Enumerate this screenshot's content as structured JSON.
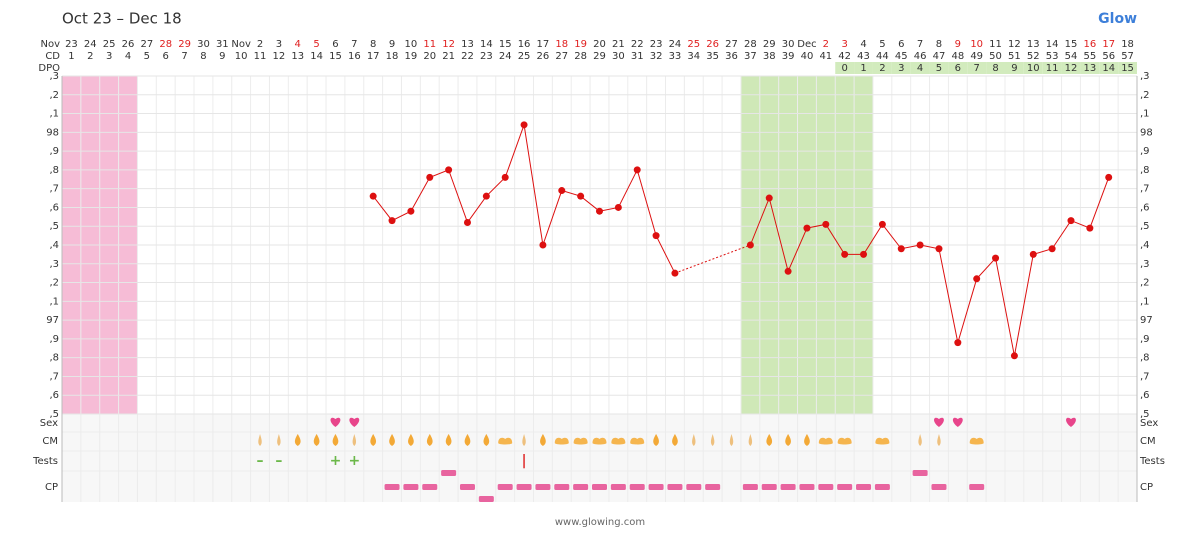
{
  "chart_data": {
    "type": "line",
    "title": "Oct 23 – Dec 18",
    "logo": "Glow",
    "footer": "www.glowing.com",
    "row_headers": {
      "date": "Nov",
      "cd": "CD",
      "dpo": "DPO"
    },
    "categories": [
      "23",
      "24",
      "25",
      "26",
      "27",
      "28",
      "29",
      "30",
      "31",
      "Nov",
      "2",
      "3",
      "4",
      "5",
      "6",
      "7",
      "8",
      "9",
      "10",
      "11",
      "12",
      "13",
      "14",
      "15",
      "16",
      "17",
      "18",
      "19",
      "20",
      "21",
      "22",
      "23",
      "24",
      "25",
      "26",
      "27",
      "28",
      "29",
      "30",
      "Dec",
      "2",
      "3",
      "4",
      "5",
      "6",
      "7",
      "8",
      "9",
      "10",
      "11",
      "12",
      "13",
      "14",
      "15",
      "16",
      "17",
      "18"
    ],
    "weekend": [
      false,
      false,
      false,
      false,
      false,
      true,
      true,
      false,
      false,
      false,
      false,
      false,
      true,
      true,
      false,
      false,
      false,
      false,
      false,
      true,
      true,
      false,
      false,
      false,
      false,
      false,
      true,
      true,
      false,
      false,
      false,
      false,
      false,
      true,
      true,
      false,
      false,
      false,
      false,
      false,
      true,
      true,
      false,
      false,
      false,
      false,
      false,
      true,
      true,
      false,
      false,
      false,
      false,
      false,
      true,
      true,
      false
    ],
    "weekend_color": "#e02020",
    "cycle_days": [
      1,
      2,
      3,
      4,
      5,
      6,
      7,
      8,
      9,
      10,
      11,
      12,
      13,
      14,
      15,
      16,
      17,
      18,
      19,
      20,
      21,
      22,
      23,
      24,
      25,
      26,
      27,
      28,
      29,
      30,
      31,
      32,
      33,
      34,
      35,
      36,
      37,
      38,
      39,
      40,
      41,
      42,
      43,
      44,
      45,
      46,
      47,
      48,
      49,
      50,
      51,
      52,
      53,
      54,
      55,
      56,
      57
    ],
    "dpo": [
      null,
      null,
      null,
      null,
      null,
      null,
      null,
      null,
      null,
      null,
      null,
      null,
      null,
      null,
      null,
      null,
      null,
      null,
      null,
      null,
      null,
      null,
      null,
      null,
      null,
      null,
      null,
      null,
      null,
      null,
      null,
      null,
      null,
      null,
      null,
      null,
      null,
      null,
      null,
      null,
      null,
      0,
      1,
      2,
      3,
      4,
      5,
      6,
      7,
      8,
      9,
      10,
      11,
      12,
      13,
      14,
      15
    ],
    "dpo_color": "#d2ebbd",
    "values": [
      null,
      null,
      null,
      null,
      null,
      null,
      null,
      null,
      null,
      null,
      null,
      null,
      null,
      null,
      null,
      null,
      97.66,
      97.53,
      97.58,
      97.76,
      97.8,
      97.52,
      97.66,
      97.76,
      98.04,
      97.4,
      97.69,
      97.66,
      97.58,
      97.6,
      97.8,
      97.45,
      97.25,
      null,
      null,
      null,
      97.4,
      97.65,
      97.26,
      97.49,
      97.51,
      97.35,
      97.35,
      97.51,
      97.38,
      97.4,
      97.38,
      96.88,
      97.22,
      97.33,
      96.81,
      97.35,
      97.38,
      97.53,
      97.49,
      97.76,
      null
    ],
    "color": "#dd1010",
    "gap_style": "dotted",
    "ylim": [
      96.5,
      98.3
    ],
    "yticks": [
      {
        "value": 96.5,
        "label": ",5"
      },
      {
        "value": 96.6,
        "label": ",6"
      },
      {
        "value": 96.7,
        "label": ",7"
      },
      {
        "value": 96.8,
        "label": ",8"
      },
      {
        "value": 96.9,
        "label": ",9"
      },
      97,
      {
        "value": 97.1,
        "label": ",1"
      },
      {
        "value": 97.2,
        "label": ",2"
      },
      {
        "value": 97.3,
        "label": ",3"
      },
      {
        "value": 97.4,
        "label": ",4"
      },
      {
        "value": 97.5,
        "label": ",5"
      },
      {
        "value": 97.6,
        "label": ",6"
      },
      {
        "value": 97.7,
        "label": ",7"
      },
      {
        "value": 97.8,
        "label": ",8"
      },
      {
        "value": 97.9,
        "label": ",9"
      },
      98,
      {
        "value": 98.1,
        "label": ",1"
      },
      {
        "value": 98.2,
        "label": ",2"
      },
      {
        "value": 98.3,
        "label": ",3"
      }
    ],
    "grid": true,
    "shading": [
      {
        "from": 1,
        "to": 4,
        "color": "#f6bcd6"
      },
      {
        "from": 37,
        "to": 43,
        "color": "#cfe8b7"
      }
    ],
    "panel_rows": {
      "sex": "Sex",
      "cm": "CM",
      "tests": "Tests",
      "cp": "CP"
    },
    "sex_days": [
      15,
      16,
      47,
      48,
      54
    ],
    "sex_color": "#e8458b",
    "cm": [
      null,
      null,
      null,
      null,
      null,
      null,
      null,
      null,
      null,
      null,
      1,
      1,
      2,
      2,
      2,
      1,
      2,
      2,
      2,
      2,
      2,
      2,
      2,
      3,
      1,
      2,
      3,
      3,
      3,
      3,
      3,
      2,
      2,
      1,
      1,
      1,
      1,
      2,
      2,
      2,
      3,
      3,
      null,
      3,
      null,
      1,
      1,
      null,
      3,
      null,
      null,
      null,
      null,
      null,
      null,
      null,
      null
    ],
    "cm_colors": [
      "#eec07e",
      "#f3a936",
      "#f5b54e"
    ],
    "tests": [
      null,
      null,
      null,
      null,
      null,
      null,
      null,
      null,
      null,
      null,
      {
        "symbol": "–",
        "color": "#6cb84a"
      },
      {
        "symbol": "–",
        "color": "#6cb84a"
      },
      null,
      null,
      {
        "symbol": "+",
        "color": "#6cb84a"
      },
      {
        "symbol": "+",
        "color": "#6cb84a"
      },
      null,
      null,
      null,
      null,
      null,
      null,
      null,
      null,
      {
        "symbol": "|",
        "color": "#e03030"
      },
      null,
      null,
      null,
      null,
      null,
      null,
      null,
      null,
      null,
      null,
      null,
      null,
      null,
      null,
      null,
      null,
      null,
      null,
      null,
      null,
      null,
      null,
      null,
      null,
      null,
      null,
      null,
      null,
      null,
      null,
      null,
      null
    ],
    "cp": [
      null,
      null,
      null,
      null,
      null,
      null,
      null,
      null,
      null,
      null,
      null,
      null,
      null,
      null,
      null,
      null,
      null,
      2,
      2,
      2,
      3,
      2,
      1,
      2,
      2,
      2,
      2,
      2,
      2,
      2,
      2,
      2,
      2,
      2,
      2,
      null,
      2,
      2,
      2,
      2,
      2,
      2,
      2,
      2,
      null,
      3,
      2,
      null,
      2,
      null,
      null,
      null,
      null,
      null,
      null,
      null,
      null
    ],
    "cp_color": "#e8649f"
  }
}
